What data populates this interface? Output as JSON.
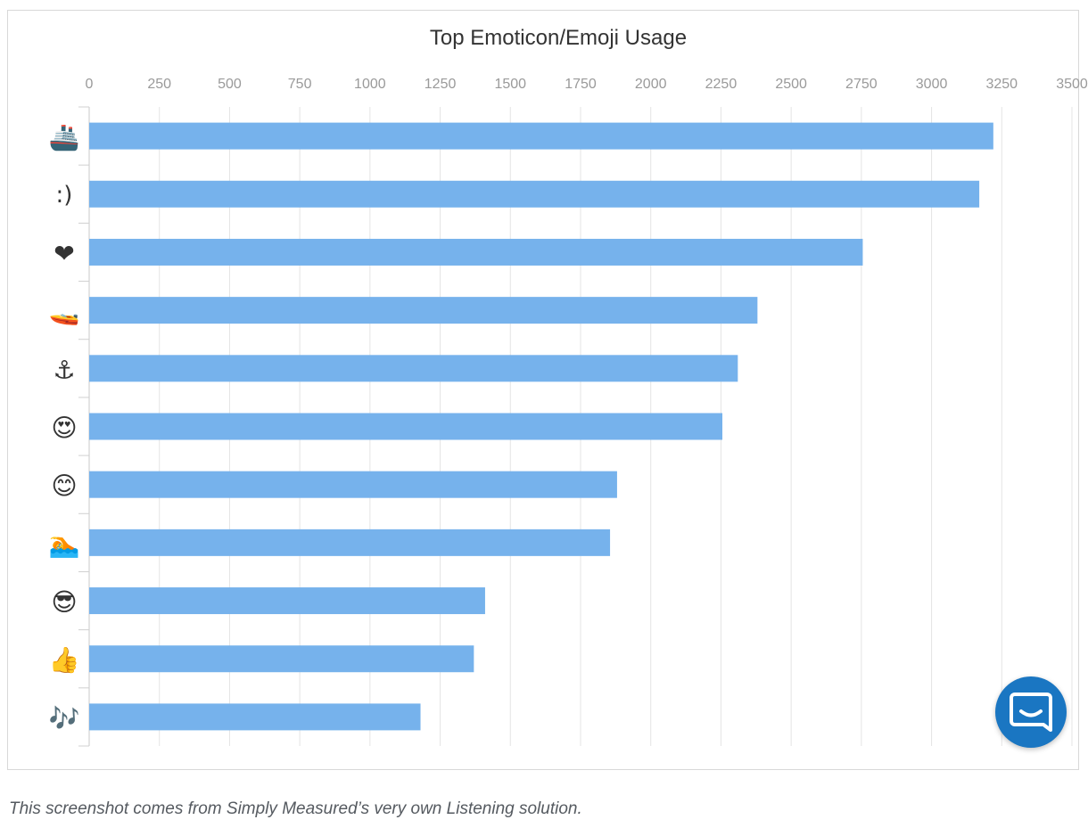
{
  "chart_data": {
    "type": "bar",
    "orientation": "horizontal",
    "title": "Top Emoticon/Emoji Usage",
    "xlabel": "",
    "ylabel": "",
    "xlim": [
      0,
      3500
    ],
    "x_ticks": [
      "0",
      "250",
      "500",
      "750",
      "1000",
      "1250",
      "1500",
      "1750",
      "2000",
      "2250",
      "2500",
      "2750",
      "3000",
      "3250",
      "3500"
    ],
    "x_tick_values": [
      0,
      250,
      500,
      750,
      1000,
      1250,
      1500,
      1750,
      2000,
      2250,
      2500,
      2750,
      3000,
      3250,
      3500
    ],
    "grid": true,
    "legend": "none",
    "bar_color": "#76b2ec",
    "categories": [
      "ship emoji",
      ":)",
      "heart",
      "speedboat",
      "anchor",
      "heart eyes",
      "smiling face",
      "swimmer",
      "sunglasses face",
      "thumbs up",
      "music notes"
    ],
    "category_glyphs": [
      "🚢",
      ":)",
      "❤",
      "🚤",
      "⚓",
      "😍",
      "😊",
      "🏊",
      "😎",
      "👍",
      "🎶"
    ],
    "values": [
      3220,
      3170,
      2755,
      2380,
      2310,
      2255,
      1880,
      1855,
      1410,
      1370,
      1180
    ]
  },
  "caption": "This screenshot comes from Simply Measured’s very own Listening solution.",
  "chat_widget": {
    "icon": "chat-bubble-icon",
    "color": "#1a76c2"
  }
}
